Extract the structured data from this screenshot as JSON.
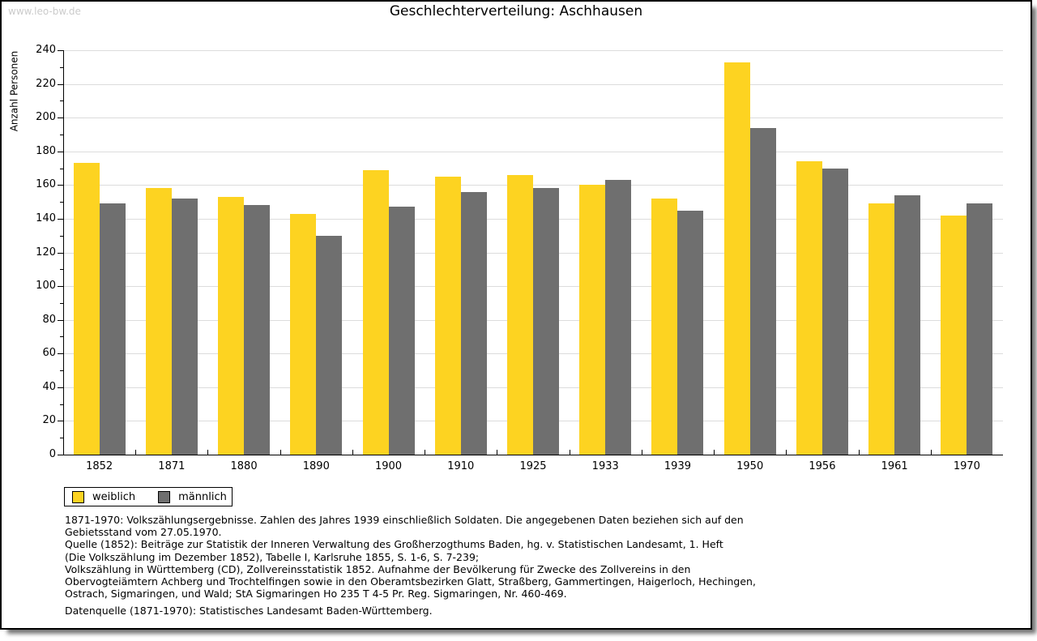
{
  "watermark": "www.leo-bw.de",
  "title": "Geschlechterverteilung: Aschhausen",
  "chart_data": {
    "type": "bar",
    "title": "Geschlechterverteilung: Aschhausen",
    "xlabel": "",
    "ylabel": "Anzahl Personen",
    "ylim": [
      0,
      240
    ],
    "ytick_major_step": 20,
    "ytick_minor_step": 10,
    "grid": true,
    "legend_position": "bottom-left",
    "categories": [
      "1852",
      "1871",
      "1880",
      "1890",
      "1900",
      "1910",
      "1925",
      "1933",
      "1939",
      "1950",
      "1956",
      "1961",
      "1970"
    ],
    "series": [
      {
        "name": "weiblich",
        "color": "#FDD321",
        "values": [
          173,
          158,
          153,
          143,
          169,
          165,
          166,
          160,
          152,
          233,
          174,
          149,
          142
        ]
      },
      {
        "name": "männlich",
        "color": "#6F6F6F",
        "values": [
          149,
          152,
          148,
          130,
          147,
          156,
          158,
          163,
          145,
          194,
          170,
          154,
          149
        ]
      }
    ]
  },
  "colors": {
    "weiblich": "#FDD321",
    "männlich": "#6F6F6F",
    "gridline": "#dcdcdc",
    "watermark": "#cbcbcb"
  },
  "footnotes": {
    "lines": [
      "1871-1970: Volkszählungsergebnisse. Zahlen des Jahres 1939 einschließlich Soldaten. Die angegebenen Daten beziehen sich auf den",
      "Gebietsstand vom 27.05.1970.",
      "Quelle (1852): Beiträge zur Statistik der Inneren Verwaltung des Großherzogthums Baden, hg. v. Statistischen Landesamt, 1. Heft",
      "(Die Volkszählung im Dezember 1852), Tabelle I, Karlsruhe 1855, S. 1-6, S. 7-239;",
      "Volkszählung in Württemberg (CD), Zollvereinsstatistik 1852. Aufnahme der Bevölkerung für Zwecke des Zollvereins in den",
      "Obervogteiämtern Achberg und Trochtelfingen sowie in den Oberamtsbezirken Glatt, Straßberg, Gammertingen, Haigerloch, Hechingen,",
      "Ostrach, Sigmaringen, und Wald; StA Sigmaringen Ho 235 T 4-5 Pr. Reg. Sigmaringen, Nr. 460-469."
    ],
    "datasource": "Datenquelle (1871-1970): Statistisches Landesamt Baden-Württemberg."
  }
}
